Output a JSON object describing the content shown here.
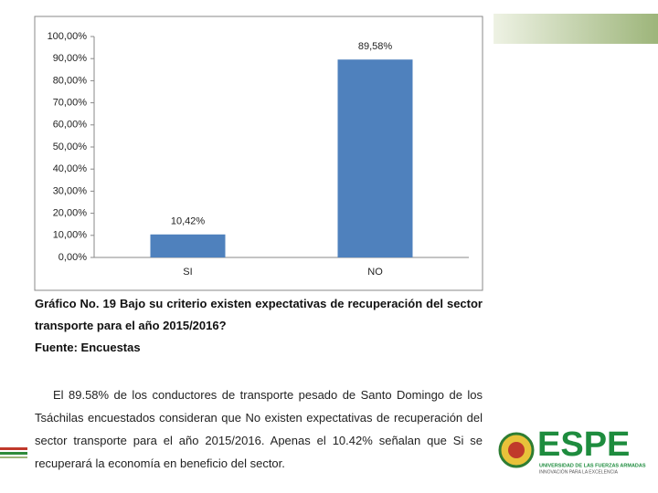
{
  "chart_data": {
    "type": "bar",
    "categories": [
      "SI",
      "NO"
    ],
    "values": [
      10.42,
      89.58
    ],
    "value_labels": [
      "10,42%",
      "89,58%"
    ],
    "color": "#4f81bd",
    "ylim": [
      0,
      100
    ],
    "yticks": [
      {
        "value": 0,
        "label": "0,00%"
      },
      {
        "value": 10,
        "label": "10,00%"
      },
      {
        "value": 20,
        "label": "20,00%"
      },
      {
        "value": 30,
        "label": "30,00%"
      },
      {
        "value": 40,
        "label": "40,00%"
      },
      {
        "value": 50,
        "label": "50,00%"
      },
      {
        "value": 60,
        "label": "60,00%"
      },
      {
        "value": 70,
        "label": "70,00%"
      },
      {
        "value": 80,
        "label": "80,00%"
      },
      {
        "value": 90,
        "label": "90,00%"
      },
      {
        "value": 100,
        "label": "100,00%"
      }
    ],
    "grid": false
  },
  "caption": {
    "title": "Gráfico No. 19 Bajo su criterio existen expectativas de recuperación del sector transporte para el año 2015/2016?",
    "source": "Fuente: Encuestas"
  },
  "paragraph": "El 89.58% de los conductores de transporte pesado de Santo Domingo de los Tsáchilas encuestados consideran que No existen expectativas de recuperación del sector transporte para el año 2015/2016. Apenas el 10.42% señalan que Si se recuperará la economía en beneficio del sector.",
  "logo": {
    "name": "ESPE",
    "line1": "UNIVERSIDAD DE LAS FUERZAS ARMADAS",
    "line2": "INNOVACIÓN PARA LA EXCELENCIA"
  }
}
